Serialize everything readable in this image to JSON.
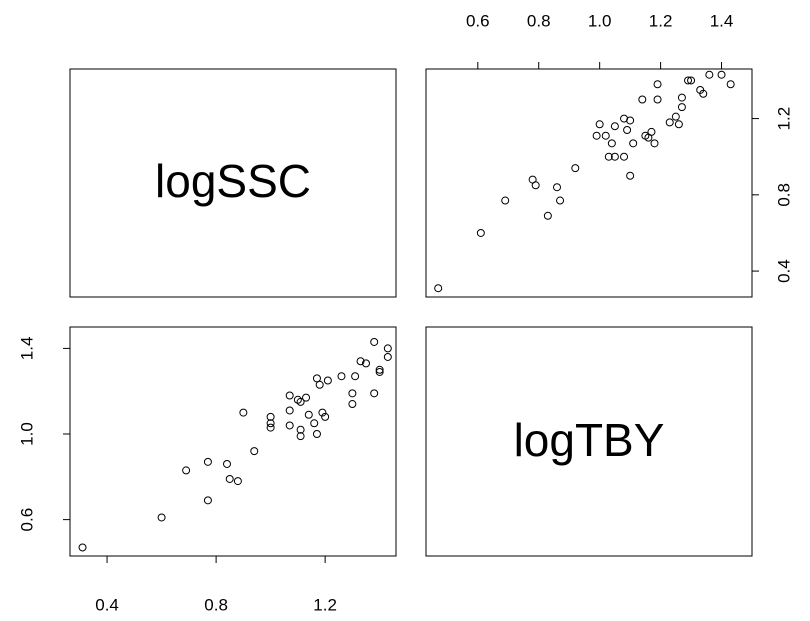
{
  "chart_data": {
    "type": "pairs",
    "variables": [
      "logSSC",
      "logTBY"
    ],
    "x": [
      0.31,
      0.6,
      0.69,
      0.77,
      0.77,
      0.84,
      0.85,
      0.88,
      0.9,
      0.94,
      1.0,
      1.0,
      1.0,
      1.07,
      1.07,
      1.07,
      1.1,
      1.11,
      1.11,
      1.11,
      1.13,
      1.14,
      1.16,
      1.17,
      1.17,
      1.18,
      1.19,
      1.2,
      1.21,
      1.26,
      1.3,
      1.31,
      1.33,
      1.35,
      1.38,
      1.38,
      1.4,
      1.4,
      1.43,
      1.43,
      1.3
    ],
    "y": [
      0.47,
      0.61,
      0.83,
      0.87,
      0.69,
      0.86,
      0.79,
      0.78,
      1.1,
      0.92,
      1.08,
      1.05,
      1.03,
      1.18,
      1.11,
      1.04,
      1.16,
      1.15,
      1.02,
      0.99,
      1.17,
      1.09,
      1.05,
      1.0,
      1.26,
      1.23,
      1.1,
      1.08,
      1.25,
      1.27,
      1.14,
      1.27,
      1.34,
      1.33,
      1.43,
      1.19,
      1.29,
      1.3,
      1.36,
      1.4,
      1.19
    ],
    "xlim": [
      0.264,
      1.46
    ],
    "ylim": [
      0.43,
      1.5
    ],
    "xticks": [
      0.4,
      0.8,
      1.2
    ],
    "yticks": [
      0.6,
      {
        "value": 1.0,
        "label": "1.0"
      },
      1.4
    ],
    "top_ticks": [
      0.6,
      0.8,
      {
        "value": 1.0,
        "label": "1.0"
      },
      1.2,
      1.4
    ],
    "right_ticks": [
      0.4,
      0.8,
      1.2
    ]
  }
}
